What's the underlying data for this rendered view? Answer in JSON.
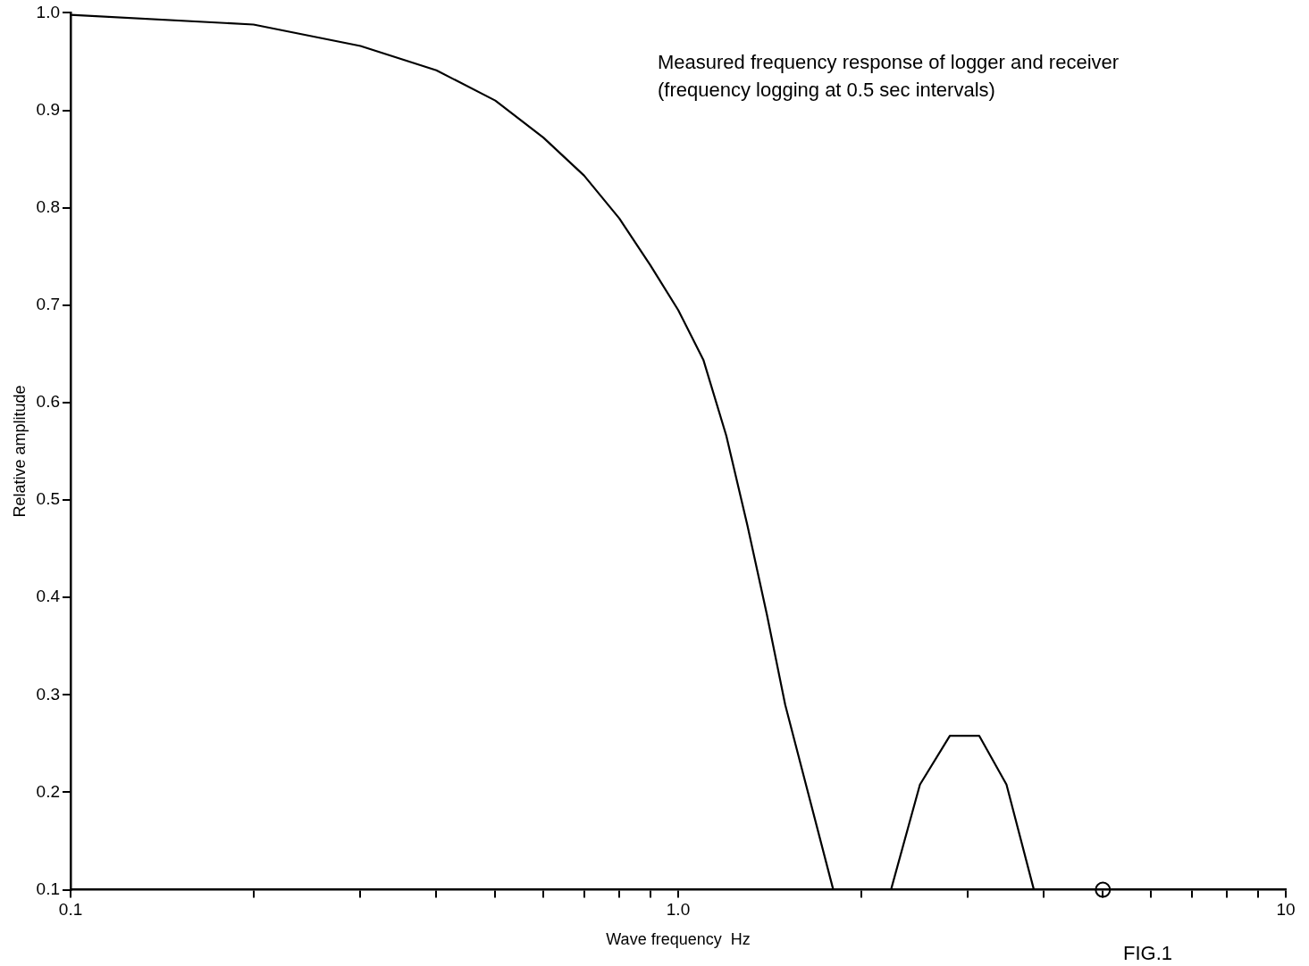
{
  "chart_data": {
    "type": "line",
    "xlabel": "Wave frequency  Hz",
    "ylabel": "Relative amplitude",
    "annotations": [
      "Measured frequency response of logger and receiver",
      "(frequency logging at 0.5 sec intervals)",
      "FIG.1"
    ],
    "log": "x",
    "xlim": [
      0.1,
      10
    ],
    "ylim": [
      0.1,
      1.0
    ],
    "xticks": [
      0.1,
      {
        "value": 0.2,
        "label": null
      },
      {
        "value": 0.3,
        "label": null
      },
      {
        "value": 0.4,
        "label": null
      },
      {
        "value": 0.5,
        "label": null
      },
      {
        "value": 0.6,
        "label": null
      },
      {
        "value": 0.7,
        "label": null
      },
      {
        "value": 0.8,
        "label": null
      },
      {
        "value": 0.9,
        "label": null
      },
      {
        "value": 1,
        "label": "1.0"
      },
      {
        "value": 2,
        "label": null
      },
      {
        "value": 3,
        "label": null
      },
      {
        "value": 4,
        "label": null
      },
      {
        "value": 5,
        "label": null
      },
      {
        "value": 6,
        "label": null
      },
      {
        "value": 7,
        "label": null
      },
      {
        "value": 8,
        "label": null
      },
      {
        "value": 9,
        "label": null
      },
      10
    ],
    "yticks": [
      0.1,
      0.2,
      0.3,
      0.4,
      0.5,
      0.6,
      0.7,
      0.8,
      0.9,
      {
        "value": 1,
        "label": "1.0"
      }
    ],
    "grid": false,
    "legend": false,
    "line_style": "solid",
    "marker": "none",
    "series": [
      {
        "color": "#000000",
        "x": [
          0.1,
          0.2,
          0.3,
          0.4,
          0.5,
          0.6,
          0.7,
          0.8,
          0.9,
          1.0,
          1.1,
          1.2,
          1.3,
          1.4,
          1.5,
          1.8,
          2.24,
          2.5,
          2.8,
          3.13,
          3.47,
          3.85
        ],
        "values": [
          0.998,
          0.988,
          0.966,
          0.941,
          0.91,
          0.872,
          0.833,
          0.789,
          0.741,
          0.695,
          0.644,
          0.566,
          0.474,
          0.382,
          0.29,
          0.1,
          0.1,
          0.208,
          0.258,
          0.258,
          0.208,
          0.1
        ]
      },
      {
        "type": "scatter",
        "color": "#000000",
        "marker": "circle",
        "x": [
          5
        ],
        "values": [
          0.1
        ]
      }
    ]
  }
}
